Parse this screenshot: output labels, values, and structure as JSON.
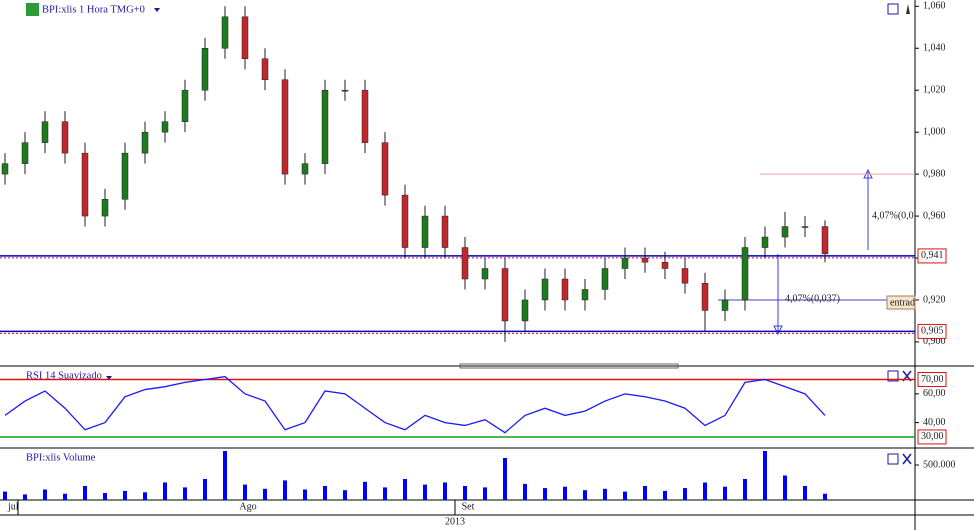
{
  "chart_data": [
    {
      "type": "candlestick",
      "title": "BPI:xlis 1 Hora TMG+0",
      "categories": [
        "jul",
        null,
        null,
        null,
        null,
        null,
        null,
        null,
        null,
        null,
        null,
        null,
        "Ago",
        null,
        null,
        null,
        null,
        null,
        null,
        null,
        null,
        null,
        null,
        "Set",
        null,
        null,
        null,
        null,
        null,
        null,
        null,
        null,
        null,
        null,
        null,
        null,
        null,
        null,
        null,
        null,
        null,
        null
      ],
      "x_label": "2013",
      "open": [
        0.98,
        0.985,
        0.995,
        1.005,
        0.99,
        0.96,
        0.968,
        0.99,
        1.0,
        1.005,
        1.02,
        1.04,
        1.055,
        1.035,
        1.025,
        0.98,
        0.985,
        1.02,
        1.02,
        0.995,
        0.97,
        0.945,
        0.96,
        0.945,
        0.93,
        0.935,
        0.91,
        0.92,
        0.93,
        0.92,
        0.925,
        0.935,
        0.94,
        0.938,
        0.935,
        0.928,
        0.915,
        0.92,
        0.945,
        0.95,
        0.955,
        0.955
      ],
      "high": [
        0.99,
        1.0,
        1.01,
        1.01,
        0.995,
        0.973,
        0.995,
        1.005,
        1.01,
        1.025,
        1.045,
        1.06,
        1.06,
        1.04,
        1.03,
        0.99,
        1.025,
        1.025,
        1.025,
        1.0,
        0.975,
        0.965,
        0.965,
        0.95,
        0.94,
        0.94,
        0.925,
        0.935,
        0.935,
        0.93,
        0.94,
        0.945,
        0.945,
        0.943,
        0.94,
        0.933,
        0.925,
        0.95,
        0.955,
        0.962,
        0.96,
        0.958
      ],
      "low": [
        0.975,
        0.98,
        0.99,
        0.985,
        0.955,
        0.955,
        0.963,
        0.985,
        0.995,
        1.0,
        1.015,
        1.035,
        1.03,
        1.02,
        0.975,
        0.975,
        0.98,
        1.015,
        0.99,
        0.965,
        0.94,
        0.94,
        0.94,
        0.925,
        0.925,
        0.9,
        0.905,
        0.915,
        0.915,
        0.915,
        0.92,
        0.93,
        0.933,
        0.93,
        0.923,
        0.905,
        0.91,
        0.915,
        0.94,
        0.945,
        0.95,
        0.938
      ],
      "close": [
        0.985,
        0.995,
        1.005,
        0.99,
        0.96,
        0.968,
        0.99,
        1.0,
        1.005,
        1.02,
        1.04,
        1.055,
        1.035,
        1.025,
        0.98,
        0.985,
        1.02,
        1.02,
        0.995,
        0.97,
        0.945,
        0.96,
        0.945,
        0.93,
        0.935,
        0.91,
        0.92,
        0.93,
        0.92,
        0.925,
        0.935,
        0.94,
        0.938,
        0.935,
        0.928,
        0.915,
        0.92,
        0.945,
        0.95,
        0.955,
        0.955,
        0.942
      ],
      "up_color": "#1f7a1f",
      "down_color": "#c0282d",
      "ylim": [
        0.889,
        1.063
      ],
      "yticks": [
        {
          "value": 0.9,
          "label": "0,900"
        },
        {
          "value": 0.92,
          "label": "0,920"
        },
        {
          "value": 0.94,
          "label": "0,940"
        },
        {
          "value": 0.96,
          "label": "0,960"
        },
        {
          "value": 0.98,
          "label": "0,980"
        },
        {
          "value": 1.0,
          "label": "1,000"
        },
        {
          "value": 1.02,
          "label": "1,020"
        },
        {
          "value": 1.04,
          "label": "1,040"
        },
        {
          "value": 1.06,
          "label": "1,060"
        }
      ],
      "levels": [
        {
          "value": 0.941,
          "label": "0,941",
          "color": "#0000cc"
        },
        {
          "value": 0.905,
          "label": "0,905",
          "color": "#0000cc"
        },
        {
          "value": 0.98,
          "color": "#f0a0a0"
        }
      ],
      "annotations": [
        "4,07%(0,0",
        "4,07%(0,037)",
        "entrad"
      ]
    },
    {
      "type": "line",
      "title": "RSI 14 Suavizado",
      "values": [
        45,
        55,
        62,
        50,
        35,
        40,
        58,
        63,
        65,
        68,
        70,
        72,
        60,
        55,
        35,
        40,
        62,
        60,
        50,
        40,
        35,
        45,
        40,
        38,
        42,
        33,
        45,
        50,
        45,
        48,
        55,
        60,
        58,
        55,
        50,
        38,
        45,
        68,
        70,
        65,
        60,
        45
      ],
      "color": "#1a1aff",
      "ylim": [
        23,
        78
      ],
      "yticks": [
        {
          "value": 60,
          "label": "60,00"
        },
        {
          "value": 40,
          "label": "40,00"
        }
      ],
      "levels": [
        {
          "value": 70,
          "label": "70,00",
          "color": "#e01010"
        },
        {
          "value": 30,
          "label": "30,00",
          "color": "#10a010"
        }
      ]
    },
    {
      "type": "bar",
      "title": "BPI:xlis Volume",
      "values": [
        120000,
        80000,
        150000,
        90000,
        200000,
        100000,
        130000,
        110000,
        250000,
        180000,
        300000,
        700000,
        220000,
        160000,
        280000,
        150000,
        200000,
        140000,
        260000,
        180000,
        300000,
        220000,
        250000,
        200000,
        180000,
        600000,
        230000,
        170000,
        190000,
        140000,
        160000,
        120000,
        200000,
        130000,
        170000,
        250000,
        190000,
        300000,
        700000,
        350000,
        200000,
        90000
      ],
      "color": "#0000ff",
      "ylim": [
        0,
        714000
      ],
      "yticks": [
        {
          "value": 500000,
          "label": "500.000"
        }
      ]
    }
  ]
}
